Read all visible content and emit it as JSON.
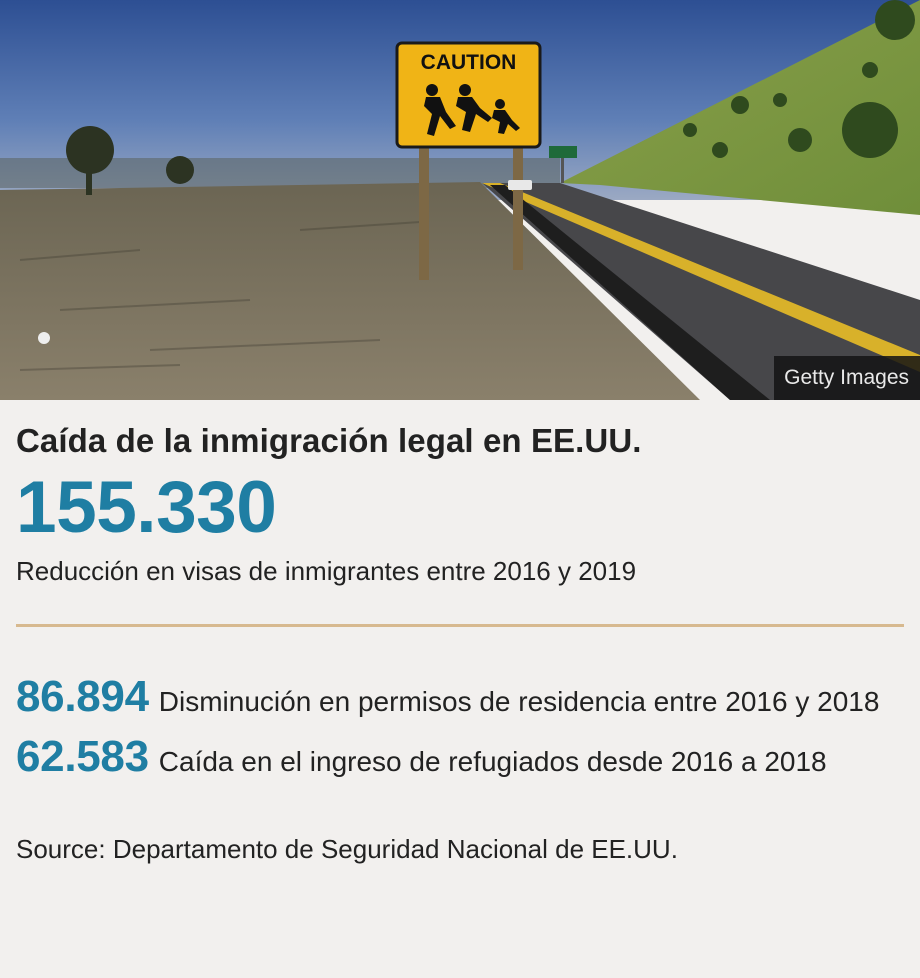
{
  "photo": {
    "sign_text": "CAUTION",
    "credit": "Getty Images"
  },
  "headline": "Caída de la inmigración legal en EE.UU.",
  "main_stat": {
    "value": "155.330",
    "caption": "Reducción en visas de inmigrantes entre 2016 y 2019"
  },
  "stats": [
    {
      "value": "86.894",
      "label": "Disminución en permisos de residencia entre 2016 y 2018"
    },
    {
      "value": "62.583",
      "label": "Caída en el ingreso de refugiados desde 2016 a 2018"
    }
  ],
  "source": "Source: Departamento de Seguridad Nacional de EE.UU.",
  "colors": {
    "accent": "#1f7ea3",
    "divider": "#d7b98f",
    "background": "#f2f0ee",
    "sign_yellow": "#f0b416"
  }
}
